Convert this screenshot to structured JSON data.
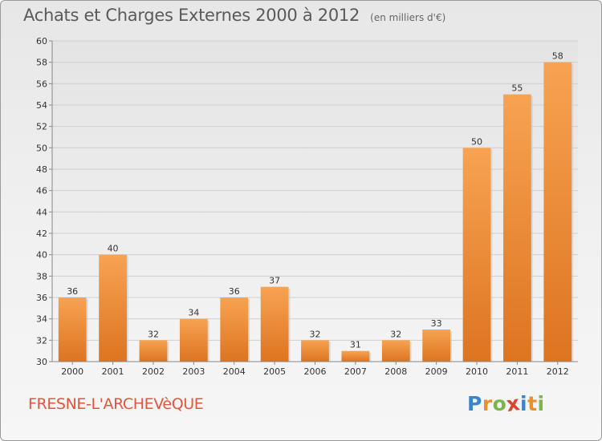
{
  "header": {
    "title": "Achats et Charges Externes 2000 à 2012",
    "subtitle": "(en milliers d'€)"
  },
  "footer": {
    "commune": "FRESNE-L'ARCHEVèQUE",
    "brand": {
      "letters": [
        "P",
        "r",
        "o",
        "x",
        "i",
        "t",
        "i"
      ],
      "colors": [
        "#3a86c8",
        "#e8912e",
        "#7ab648",
        "#d9452d",
        "#3a86c8",
        "#e8912e",
        "#7ab648"
      ]
    }
  },
  "chart_data": {
    "type": "bar",
    "categories": [
      "2000",
      "2001",
      "2002",
      "2003",
      "2004",
      "2005",
      "2006",
      "2007",
      "2008",
      "2009",
      "2010",
      "2011",
      "2012"
    ],
    "values": [
      36,
      40,
      32,
      34,
      36,
      37,
      32,
      31,
      32,
      33,
      50,
      55,
      58
    ],
    "yticks": [
      30,
      32,
      34,
      36,
      38,
      40,
      42,
      44,
      46,
      48,
      50,
      52,
      54,
      56,
      58,
      60
    ],
    "ylim": [
      30,
      60
    ],
    "title": "Achats et Charges Externes 2000 à 2012",
    "xlabel": "",
    "ylabel": "",
    "grid": true,
    "bar_color": "#f28b2c"
  }
}
